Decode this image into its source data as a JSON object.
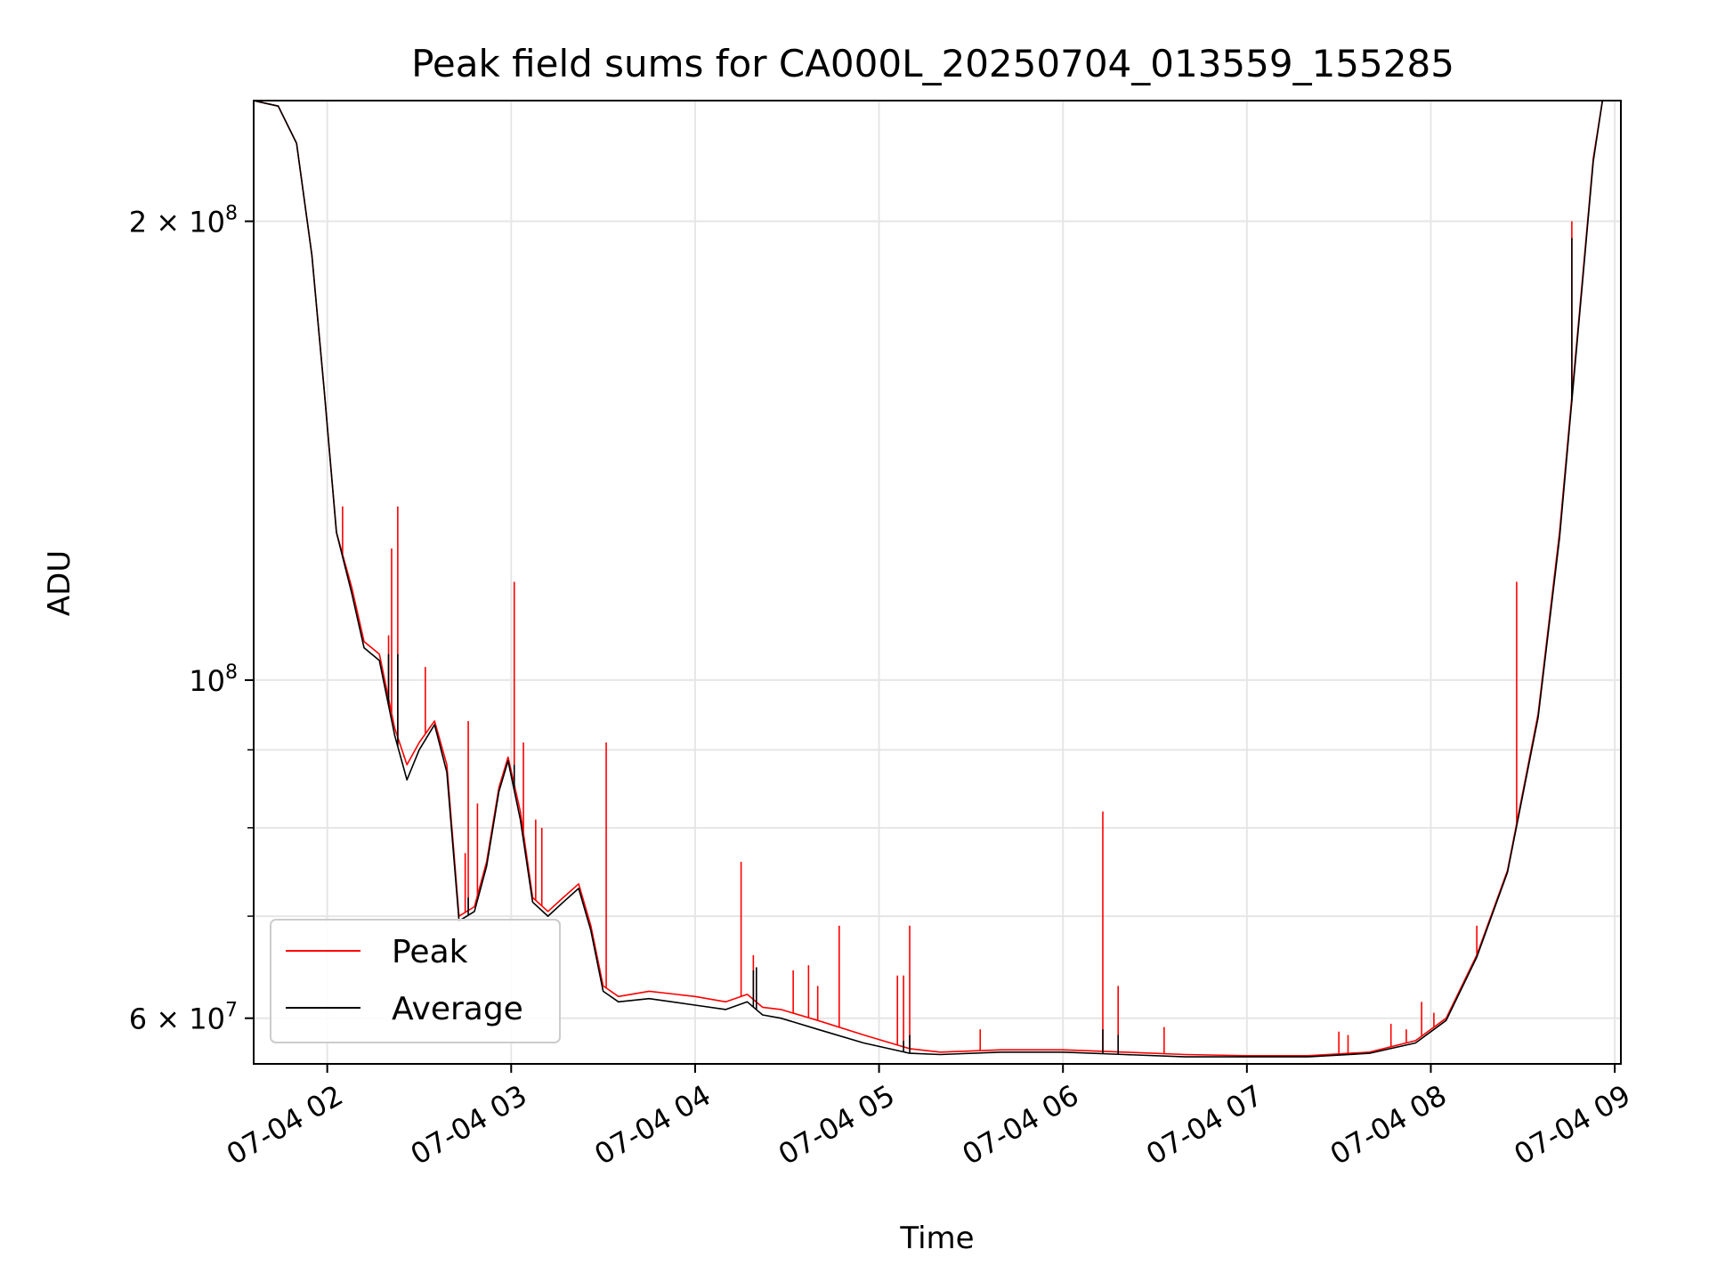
{
  "chart_data": {
    "type": "line",
    "title": "Peak field sums for CA000L_20250704_013559_155285",
    "xlabel": "Time",
    "ylabel": "ADU",
    "x_range": [
      "2025-07-04T01:36",
      "2025-07-04T09:02"
    ],
    "ylim": [
      56000000,
      240000000
    ],
    "yscale": "log",
    "grid": true,
    "legend_position": "lower-left",
    "x_ticks": [
      {
        "t": "2025-07-04T02:00",
        "label": "07-04 02"
      },
      {
        "t": "2025-07-04T03:00",
        "label": "07-04 03"
      },
      {
        "t": "2025-07-04T04:00",
        "label": "07-04 04"
      },
      {
        "t": "2025-07-04T05:00",
        "label": "07-04 05"
      },
      {
        "t": "2025-07-04T06:00",
        "label": "07-04 06"
      },
      {
        "t": "2025-07-04T07:00",
        "label": "07-04 07"
      },
      {
        "t": "2025-07-04T08:00",
        "label": "07-04 08"
      },
      {
        "t": "2025-07-04T09:00",
        "label": "07-04 09"
      }
    ],
    "y_major_ticks": [
      {
        "value": 100000000,
        "base": "10",
        "exp": "8",
        "mant": ""
      },
      {
        "value": 200000000,
        "base": "10",
        "exp": "8",
        "mant": "2 × "
      },
      {
        "value": 60000000,
        "base": "10",
        "exp": "7",
        "mant": "6 × "
      }
    ],
    "y_minor_ticks": [
      60000000,
      70000000,
      80000000,
      90000000,
      100000000,
      200000000
    ],
    "series": [
      {
        "name": "Peak",
        "color": "#ff0000",
        "points": [
          [
            "2025-07-04T01:36",
            240000000
          ],
          [
            "2025-07-04T01:44",
            238000000
          ],
          [
            "2025-07-04T01:50",
            225000000
          ],
          [
            "2025-07-04T01:55",
            190000000
          ],
          [
            "2025-07-04T01:59",
            155000000
          ],
          [
            "2025-07-04T02:03",
            125000000
          ],
          [
            "2025-07-04T02:08",
            115000000
          ],
          [
            "2025-07-04T02:12",
            106000000
          ],
          [
            "2025-07-04T02:17",
            104000000
          ],
          [
            "2025-07-04T02:22",
            93000000
          ],
          [
            "2025-07-04T02:26",
            88000000
          ],
          [
            "2025-07-04T02:30",
            91000000
          ],
          [
            "2025-07-04T02:35",
            94000000
          ],
          [
            "2025-07-04T02:39",
            88000000
          ],
          [
            "2025-07-04T02:43",
            70000000
          ],
          [
            "2025-07-04T02:48",
            71000000
          ],
          [
            "2025-07-04T02:52",
            76000000
          ],
          [
            "2025-07-04T02:56",
            85000000
          ],
          [
            "2025-07-04T02:59",
            89000000
          ],
          [
            "2025-07-04T03:03",
            82000000
          ],
          [
            "2025-07-04T03:07",
            72000000
          ],
          [
            "2025-07-04T03:12",
            70500000
          ],
          [
            "2025-07-04T03:17",
            72000000
          ],
          [
            "2025-07-04T03:22",
            73500000
          ],
          [
            "2025-07-04T03:26",
            69000000
          ],
          [
            "2025-07-04T03:30",
            63000000
          ],
          [
            "2025-07-04T03:35",
            62000000
          ],
          [
            "2025-07-04T03:45",
            62500000
          ],
          [
            "2025-07-04T04:00",
            62000000
          ],
          [
            "2025-07-04T04:10",
            61500000
          ],
          [
            "2025-07-04T04:17",
            62200000
          ],
          [
            "2025-07-04T04:22",
            61000000
          ],
          [
            "2025-07-04T04:28",
            60800000
          ],
          [
            "2025-07-04T04:40",
            59800000
          ],
          [
            "2025-07-04T04:55",
            58500000
          ],
          [
            "2025-07-04T05:10",
            57300000
          ],
          [
            "2025-07-04T05:20",
            57000000
          ],
          [
            "2025-07-04T05:40",
            57200000
          ],
          [
            "2025-07-04T06:00",
            57200000
          ],
          [
            "2025-07-04T06:20",
            57000000
          ],
          [
            "2025-07-04T06:40",
            56800000
          ],
          [
            "2025-07-04T07:00",
            56700000
          ],
          [
            "2025-07-04T07:20",
            56700000
          ],
          [
            "2025-07-04T07:40",
            57000000
          ],
          [
            "2025-07-04T07:55",
            58000000
          ],
          [
            "2025-07-04T08:05",
            60000000
          ],
          [
            "2025-07-04T08:15",
            66000000
          ],
          [
            "2025-07-04T08:25",
            75000000
          ],
          [
            "2025-07-04T08:35",
            95000000
          ],
          [
            "2025-07-04T08:42",
            125000000
          ],
          [
            "2025-07-04T08:48",
            170000000
          ],
          [
            "2025-07-04T08:53",
            220000000
          ],
          [
            "2025-07-04T08:56",
            240000000
          ]
        ],
        "spikes": [
          [
            "2025-07-04T02:05",
            130000000
          ],
          [
            "2025-07-04T02:20",
            107000000
          ],
          [
            "2025-07-04T02:21",
            122000000
          ],
          [
            "2025-07-04T02:23",
            130000000
          ],
          [
            "2025-07-04T02:25",
            89000000
          ],
          [
            "2025-07-04T02:32",
            102000000
          ],
          [
            "2025-07-04T02:45",
            77000000
          ],
          [
            "2025-07-04T02:46",
            94000000
          ],
          [
            "2025-07-04T02:49",
            83000000
          ],
          [
            "2025-07-04T03:01",
            116000000
          ],
          [
            "2025-07-04T03:04",
            91000000
          ],
          [
            "2025-07-04T03:08",
            81000000
          ],
          [
            "2025-07-04T03:10",
            80000000
          ],
          [
            "2025-07-04T03:31",
            91000000
          ],
          [
            "2025-07-04T04:15",
            76000000
          ],
          [
            "2025-07-04T04:19",
            66000000
          ],
          [
            "2025-07-04T04:32",
            64500000
          ],
          [
            "2025-07-04T04:37",
            65000000
          ],
          [
            "2025-07-04T04:40",
            63000000
          ],
          [
            "2025-07-04T04:47",
            69000000
          ],
          [
            "2025-07-04T05:06",
            64000000
          ],
          [
            "2025-07-04T05:08",
            64000000
          ],
          [
            "2025-07-04T05:10",
            69000000
          ],
          [
            "2025-07-04T05:33",
            59000000
          ],
          [
            "2025-07-04T06:13",
            82000000
          ],
          [
            "2025-07-04T06:18",
            63000000
          ],
          [
            "2025-07-04T06:33",
            59200000
          ],
          [
            "2025-07-04T07:30",
            58800000
          ],
          [
            "2025-07-04T07:33",
            58500000
          ],
          [
            "2025-07-04T07:47",
            59500000
          ],
          [
            "2025-07-04T07:52",
            59000000
          ],
          [
            "2025-07-04T07:57",
            61500000
          ],
          [
            "2025-07-04T08:01",
            60500000
          ],
          [
            "2025-07-04T08:15",
            69000000
          ],
          [
            "2025-07-04T08:28",
            116000000
          ],
          [
            "2025-07-04T08:46",
            200000000
          ]
        ]
      },
      {
        "name": "Average",
        "color": "#000000",
        "points": [
          [
            "2025-07-04T01:36",
            240000000
          ],
          [
            "2025-07-04T01:44",
            238000000
          ],
          [
            "2025-07-04T01:50",
            225000000
          ],
          [
            "2025-07-04T01:55",
            190000000
          ],
          [
            "2025-07-04T01:59",
            155000000
          ],
          [
            "2025-07-04T02:03",
            125000000
          ],
          [
            "2025-07-04T02:08",
            114000000
          ],
          [
            "2025-07-04T02:12",
            105000000
          ],
          [
            "2025-07-04T02:17",
            103000000
          ],
          [
            "2025-07-04T02:22",
            92000000
          ],
          [
            "2025-07-04T02:26",
            86000000
          ],
          [
            "2025-07-04T02:30",
            90000000
          ],
          [
            "2025-07-04T02:35",
            93500000
          ],
          [
            "2025-07-04T02:39",
            87000000
          ],
          [
            "2025-07-04T02:43",
            69500000
          ],
          [
            "2025-07-04T02:48",
            70500000
          ],
          [
            "2025-07-04T02:52",
            75500000
          ],
          [
            "2025-07-04T02:56",
            84500000
          ],
          [
            "2025-07-04T02:59",
            88500000
          ],
          [
            "2025-07-04T03:03",
            81000000
          ],
          [
            "2025-07-04T03:07",
            71500000
          ],
          [
            "2025-07-04T03:12",
            70000000
          ],
          [
            "2025-07-04T03:17",
            71500000
          ],
          [
            "2025-07-04T03:22",
            73000000
          ],
          [
            "2025-07-04T03:26",
            68500000
          ],
          [
            "2025-07-04T03:30",
            62500000
          ],
          [
            "2025-07-04T03:35",
            61500000
          ],
          [
            "2025-07-04T03:45",
            61800000
          ],
          [
            "2025-07-04T04:00",
            61200000
          ],
          [
            "2025-07-04T04:10",
            60800000
          ],
          [
            "2025-07-04T04:17",
            61500000
          ],
          [
            "2025-07-04T04:22",
            60300000
          ],
          [
            "2025-07-04T04:28",
            60000000
          ],
          [
            "2025-07-04T04:40",
            59000000
          ],
          [
            "2025-07-04T04:55",
            57800000
          ],
          [
            "2025-07-04T05:10",
            56900000
          ],
          [
            "2025-07-04T05:20",
            56800000
          ],
          [
            "2025-07-04T05:40",
            57000000
          ],
          [
            "2025-07-04T06:00",
            57000000
          ],
          [
            "2025-07-04T06:20",
            56800000
          ],
          [
            "2025-07-04T06:40",
            56600000
          ],
          [
            "2025-07-04T07:00",
            56600000
          ],
          [
            "2025-07-04T07:20",
            56600000
          ],
          [
            "2025-07-04T07:40",
            56900000
          ],
          [
            "2025-07-04T07:55",
            57800000
          ],
          [
            "2025-07-04T08:05",
            59800000
          ],
          [
            "2025-07-04T08:15",
            65800000
          ],
          [
            "2025-07-04T08:25",
            74800000
          ],
          [
            "2025-07-04T08:35",
            94500000
          ],
          [
            "2025-07-04T08:42",
            124000000
          ],
          [
            "2025-07-04T08:48",
            169000000
          ],
          [
            "2025-07-04T08:53",
            219000000
          ],
          [
            "2025-07-04T08:56",
            240000000
          ]
        ],
        "spikes": [
          [
            "2025-07-04T02:20",
            104000000
          ],
          [
            "2025-07-04T02:23",
            104000000
          ],
          [
            "2025-07-04T02:46",
            72000000
          ],
          [
            "2025-07-04T03:01",
            88000000
          ],
          [
            "2025-07-04T04:19",
            64500000
          ],
          [
            "2025-07-04T04:20",
            64800000
          ],
          [
            "2025-07-04T05:08",
            58000000
          ],
          [
            "2025-07-04T05:10",
            58500000
          ],
          [
            "2025-07-04T06:13",
            59000000
          ],
          [
            "2025-07-04T06:18",
            58500000
          ],
          [
            "2025-07-04T08:46",
            195000000
          ]
        ]
      }
    ]
  }
}
